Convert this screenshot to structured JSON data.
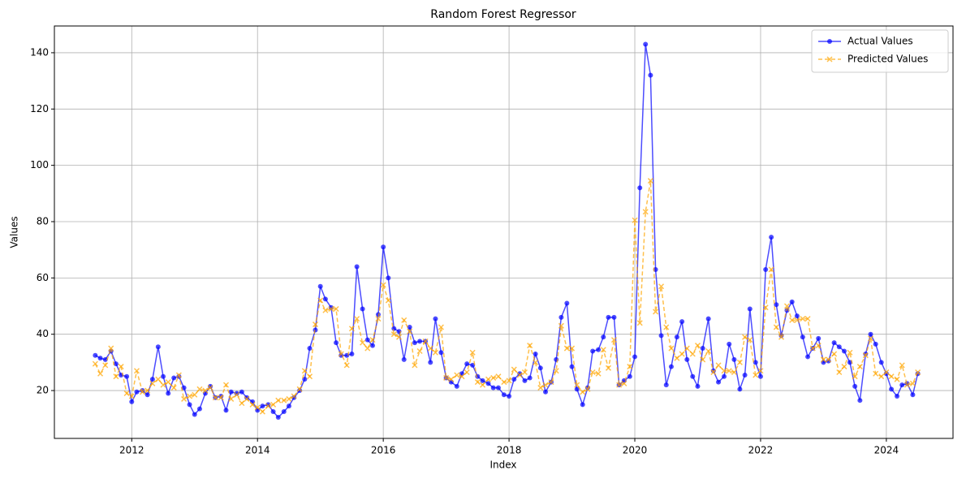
{
  "chart_data": {
    "type": "line",
    "title": "Random Forest Regressor",
    "x_label": "Index",
    "y_label": "Values",
    "x": [
      2011.42,
      2011.5,
      2011.58,
      2011.67,
      2011.75,
      2011.83,
      2011.92,
      2012.0,
      2012.08,
      2012.17,
      2012.25,
      2012.33,
      2012.42,
      2012.5,
      2012.58,
      2012.67,
      2012.75,
      2012.83,
      2012.92,
      2013.0,
      2013.08,
      2013.17,
      2013.25,
      2013.33,
      2013.42,
      2013.5,
      2013.58,
      2013.67,
      2013.75,
      2013.83,
      2013.92,
      2014.0,
      2014.08,
      2014.17,
      2014.25,
      2014.33,
      2014.42,
      2014.5,
      2014.58,
      2014.67,
      2014.75,
      2014.83,
      2014.92,
      2015.0,
      2015.08,
      2015.17,
      2015.25,
      2015.33,
      2015.42,
      2015.5,
      2015.58,
      2015.67,
      2015.75,
      2015.83,
      2015.92,
      2016.0,
      2016.08,
      2016.17,
      2016.25,
      2016.33,
      2016.42,
      2016.5,
      2016.58,
      2016.67,
      2016.75,
      2016.83,
      2016.92,
      2017.0,
      2017.08,
      2017.17,
      2017.25,
      2017.33,
      2017.42,
      2017.5,
      2017.58,
      2017.67,
      2017.75,
      2017.83,
      2017.92,
      2018.0,
      2018.08,
      2018.17,
      2018.25,
      2018.33,
      2018.42,
      2018.5,
      2018.58,
      2018.67,
      2018.75,
      2018.83,
      2018.92,
      2019.0,
      2019.08,
      2019.17,
      2019.25,
      2019.33,
      2019.42,
      2019.5,
      2019.58,
      2019.67,
      2019.75,
      2019.83,
      2019.92,
      2020.0,
      2020.08,
      2020.17,
      2020.25,
      2020.33,
      2020.42,
      2020.5,
      2020.58,
      2020.67,
      2020.75,
      2020.83,
      2020.92,
      2021.0,
      2021.08,
      2021.17,
      2021.25,
      2021.33,
      2021.42,
      2021.5,
      2021.58,
      2021.67,
      2021.75,
      2021.83,
      2021.92,
      2022.0,
      2022.08,
      2022.17,
      2022.25,
      2022.33,
      2022.42,
      2022.5,
      2022.58,
      2022.67,
      2022.75,
      2022.83,
      2022.92,
      2023.0,
      2023.08,
      2023.17,
      2023.25,
      2023.33,
      2023.42,
      2023.5,
      2023.58,
      2023.67,
      2023.75,
      2023.83,
      2023.92,
      2024.0,
      2024.08,
      2024.17,
      2024.25,
      2024.33,
      2024.42,
      2024.5
    ],
    "series": [
      {
        "name": "Actual Values",
        "color": "#0000ff",
        "marker": "o",
        "linestyle": "solid",
        "values": [
          32.5,
          31.5,
          31,
          34,
          29.5,
          25.5,
          25,
          16,
          19.5,
          20,
          18.5,
          24,
          35.5,
          25,
          19,
          24.5,
          25,
          21,
          15,
          11.5,
          13.5,
          19,
          21.5,
          17.5,
          18,
          13,
          19.5,
          19,
          19.5,
          17.5,
          16,
          13,
          14.5,
          15,
          12.5,
          10.5,
          12.5,
          14.5,
          17.5,
          20,
          24,
          35,
          41.5,
          57,
          52.5,
          49.5,
          37,
          32.5,
          32.5,
          33,
          64,
          49,
          38,
          36,
          47,
          71,
          60,
          42,
          41,
          31,
          42.5,
          37,
          37.5,
          37.5,
          30,
          45.5,
          33.5,
          24.5,
          23,
          21.5,
          26,
          29.5,
          29,
          25,
          23.5,
          22.5,
          21,
          21,
          18.5,
          18,
          24,
          26,
          23.5,
          24.5,
          33,
          28,
          19.5,
          23,
          31,
          46,
          51,
          28.5,
          20.5,
          15,
          21,
          34,
          34.5,
          39,
          46,
          46,
          22,
          23.5,
          25,
          32,
          92,
          143,
          132,
          63,
          39.5,
          22,
          28.5,
          39,
          44.5,
          31,
          25,
          21.5,
          35,
          45.5,
          27,
          23,
          25,
          36.5,
          31,
          20.5,
          25.5,
          49,
          30,
          25,
          63,
          74.5,
          50.5,
          39.5,
          48.5,
          51.5,
          46.5,
          39,
          32,
          35,
          38.5,
          30,
          30.5,
          37,
          35.5,
          34,
          30,
          21.5,
          16.5,
          33,
          40,
          36.5,
          30,
          26,
          20.5,
          18,
          22,
          22.5,
          18.5,
          26
        ]
      },
      {
        "name": "Predicted Values",
        "color": "#ffa500",
        "marker": "x",
        "linestyle": "dashed",
        "values": [
          29.5,
          26,
          29,
          35,
          25,
          28.5,
          19,
          18,
          27,
          19.5,
          20,
          22.5,
          24,
          22,
          23,
          21,
          25.5,
          17,
          18,
          18.5,
          20.5,
          20,
          21,
          17.5,
          17.5,
          22,
          17,
          18.5,
          15.5,
          17,
          15,
          14,
          12.5,
          14.5,
          15,
          16.5,
          16.5,
          17,
          18,
          20.5,
          27,
          25,
          43.5,
          52,
          48.5,
          49,
          49,
          33,
          29,
          42,
          45.5,
          37,
          35,
          38,
          45.5,
          57.5,
          52,
          40,
          39,
          45,
          41,
          29,
          34,
          37.5,
          35,
          33.5,
          42.5,
          24.5,
          24,
          25.5,
          25,
          26.5,
          33.5,
          23,
          22,
          24,
          24.5,
          25,
          23,
          23.5,
          27.5,
          25.5,
          26.5,
          36,
          30,
          21,
          22,
          23,
          27,
          43,
          35,
          35,
          22,
          19.5,
          20.5,
          26.5,
          26,
          34.5,
          28,
          38,
          22,
          22.5,
          28.5,
          80.5,
          44,
          83.5,
          94.5,
          48,
          57,
          42.5,
          35,
          31.5,
          33,
          35,
          33,
          36,
          31,
          34,
          26.5,
          29,
          27,
          27,
          26.5,
          30,
          39,
          38,
          25.5,
          27,
          49.5,
          63,
          42.5,
          39,
          50,
          45,
          45,
          45.5,
          45.5,
          35,
          36,
          31,
          31,
          33,
          26.5,
          28.5,
          33.5,
          25,
          28.5,
          32.5,
          38.5,
          26,
          25,
          26.5,
          25,
          24,
          29,
          22,
          22.5,
          26.5
        ]
      }
    ],
    "xlim": [
      2010.77,
      2025.06
    ],
    "xticks": [
      2012,
      2014,
      2016,
      2018,
      2020,
      2022,
      2024
    ],
    "ylim": [
      3,
      149.5
    ],
    "yticks": [
      20,
      40,
      60,
      80,
      100,
      120,
      140
    ],
    "grid": true,
    "legend": "upper right"
  }
}
